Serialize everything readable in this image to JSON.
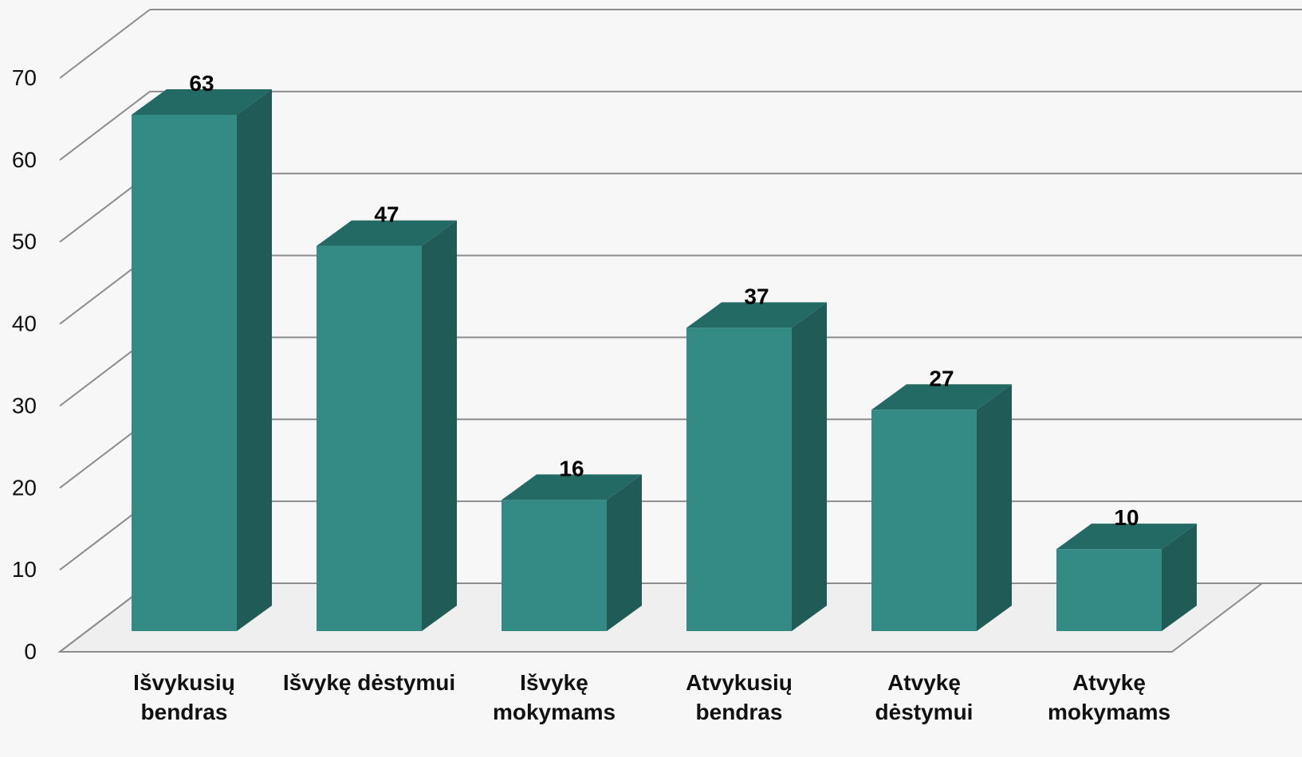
{
  "chart_data": {
    "type": "bar",
    "title": "",
    "xlabel": "",
    "ylabel": "",
    "categories": [
      [
        "Išvykusių",
        "bendras"
      ],
      [
        "Išvykę dėstymui"
      ],
      [
        "Išvykę",
        "mokymams"
      ],
      [
        "Atvykusių",
        "bendras"
      ],
      [
        "Atvykę",
        "dėstymui"
      ],
      [
        "Atvykę",
        "mokymams"
      ]
    ],
    "series": [
      {
        "values": [
          63,
          47,
          16,
          37,
          27,
          10
        ]
      }
    ],
    "ylim": [
      0,
      70
    ],
    "yticks": [
      0,
      10,
      20,
      30,
      40,
      50,
      60,
      70
    ],
    "grid": true,
    "legend": "none",
    "style": "3d-column",
    "colors": {
      "bar_front": "#348a84",
      "bar_side": "#205b57",
      "bar_top": "#236a65",
      "grid": "#8c8c8c"
    }
  }
}
